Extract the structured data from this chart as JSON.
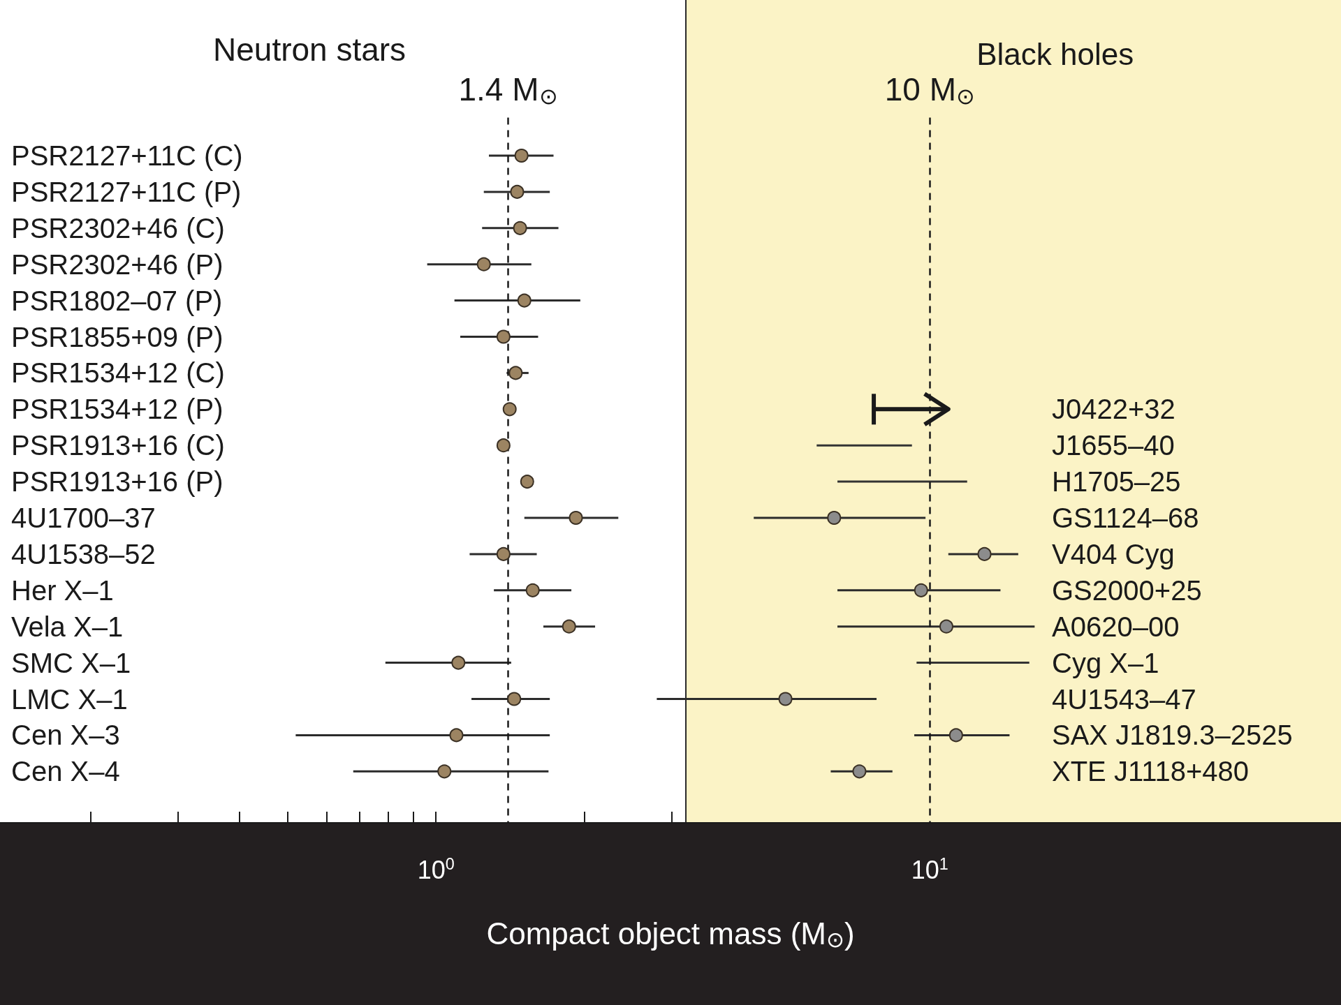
{
  "chart_data": {
    "type": "scatter",
    "orientation": "horizontal",
    "log": "x",
    "categories": [
      "PSR2127+11C (C)",
      "PSR2127+11C (P)",
      "PSR2302+46 (C)",
      "PSR2302+46 (P)",
      "PSR1802–07 (P)",
      "PSR1855+09 (P)",
      "PSR1534+12 (C)",
      "PSR1534+12 (P)",
      "PSR1913+16 (C)",
      "PSR1913+16 (P)",
      "4U1700–37",
      "4U1538–52",
      "Her X–1",
      "Vela X–1",
      "SMC X–1",
      "LMC X–1",
      "Cen X–3",
      "Cen X–4"
    ],
    "y2_categories": [
      null,
      null,
      null,
      null,
      null,
      null,
      null,
      "J0422+32",
      "J1655–40",
      "H1705–25",
      "GS1124–68",
      "V404 Cyg",
      "GS2000+25",
      "A0620–00",
      "Cyg X–1",
      "4U1543–47",
      "SAX J1819.3–2525",
      "XTE J1118+480"
    ],
    "series": [
      {
        "color": "#9c8462",
        "values": [
          1.49,
          1.46,
          1.48,
          1.25,
          1.51,
          1.37,
          1.45,
          1.41,
          1.37,
          1.53,
          1.92,
          1.37,
          1.57,
          1.86,
          1.11,
          1.44,
          1.1,
          1.04
        ],
        "errors": [
          [
            1.28,
            1.73
          ],
          [
            1.25,
            1.7
          ],
          [
            1.24,
            1.77
          ],
          [
            0.96,
            1.56
          ],
          [
            1.09,
            1.96
          ],
          [
            1.12,
            1.61
          ],
          [
            1.39,
            1.54
          ],
          null,
          null,
          null,
          [
            1.51,
            2.34
          ],
          [
            1.17,
            1.6
          ],
          [
            1.31,
            1.88
          ],
          [
            1.65,
            2.1
          ],
          [
            0.79,
            1.42
          ],
          [
            1.18,
            1.7
          ],
          [
            0.52,
            1.7
          ],
          [
            0.68,
            1.69
          ]
        ]
      },
      {
        "color": "#8c8c8c",
        "values": [
          null,
          null,
          null,
          null,
          null,
          null,
          null,
          null,
          null,
          null,
          6.4,
          12.9,
          9.6,
          10.8,
          null,
          5.1,
          11.3,
          7.2
        ],
        "errors": [
          null,
          null,
          null,
          null,
          null,
          null,
          null,
          null,
          null,
          null,
          [
            4.4,
            9.8
          ],
          [
            10.9,
            15.1
          ],
          [
            6.5,
            13.9
          ],
          [
            6.5,
            16.3
          ],
          null,
          [
            2.8,
            7.8
          ],
          [
            9.3,
            14.5
          ],
          [
            6.3,
            8.4
          ]
        ]
      },
      {
        "type": "bar",
        "color": "#333333",
        "base": [
          null,
          null,
          null,
          null,
          null,
          null,
          null,
          null,
          5.9,
          6.5,
          null,
          null,
          null,
          null,
          9.4,
          null,
          null,
          null
        ],
        "values": [
          null,
          null,
          null,
          null,
          null,
          null,
          null,
          null,
          3.3,
          5.4,
          null,
          null,
          null,
          null,
          6.5,
          null,
          null,
          null
        ]
      },
      {
        "type": "bar",
        "marker": "triangle",
        "color": "#1a1a1a",
        "base": [
          null,
          null,
          null,
          null,
          null,
          null,
          null,
          7.7,
          null,
          null,
          null,
          null,
          null,
          null,
          null,
          null,
          null,
          null
        ],
        "values": [
          null,
          null,
          null,
          null,
          null,
          null,
          null,
          3.2,
          null,
          null,
          null,
          null,
          null,
          null,
          null,
          null,
          null,
          null
        ]
      }
    ],
    "xlim": [
      0.131,
      68
    ],
    "xticks": [
      {
        "value": 0.2,
        "label": null
      },
      {
        "value": 0.3,
        "label": null
      },
      {
        "value": 0.4,
        "label": null
      },
      {
        "value": 0.5,
        "label": null
      },
      {
        "value": 0.6,
        "label": null
      },
      {
        "value": 0.7,
        "label": null
      },
      {
        "value": 0.8,
        "label": null
      },
      {
        "value": 0.9,
        "label": null
      },
      {
        "value": 1,
        "label": "10$^{0}$"
      },
      {
        "value": 2,
        "label": null
      },
      {
        "value": 3,
        "label": null
      },
      {
        "value": 4,
        "label": null
      },
      {
        "value": 5,
        "label": null
      },
      {
        "value": 6,
        "label": null
      },
      {
        "value": 7,
        "label": null
      },
      {
        "value": 8,
        "label": null
      },
      {
        "value": 9,
        "label": null
      },
      {
        "value": 10,
        "label": "10$^{1}$"
      },
      {
        "value": 20,
        "label": null
      },
      {
        "value": 30,
        "label": null
      },
      {
        "value": 40,
        "label": null
      },
      {
        "value": 50,
        "label": null
      },
      {
        "value": 60,
        "label": null
      }
    ],
    "xlabel": "Compact object mass (M$_{⊙}$)",
    "ref_lines": [
      {
        "axis": "x",
        "value": 1.4,
        "label": "1.4 M$_{⊙}$",
        "line_style": "dashed",
        "color": "#1a1a1a"
      },
      {
        "axis": "x",
        "value": 10,
        "label": "10 M$_{⊙}$",
        "line_style": "dashed",
        "color": "#1a1a1a"
      },
      {
        "axis": "x",
        "value": 3.2,
        "label": null,
        "line_style": "solid",
        "color": "#2a2a2a"
      }
    ],
    "bands": [
      {
        "axis": "x",
        "from": 3.2,
        "to": 68,
        "label": "Black holes",
        "color": "#fbf3c6"
      }
    ],
    "annotations": [
      "Neutron stars"
    ]
  }
}
